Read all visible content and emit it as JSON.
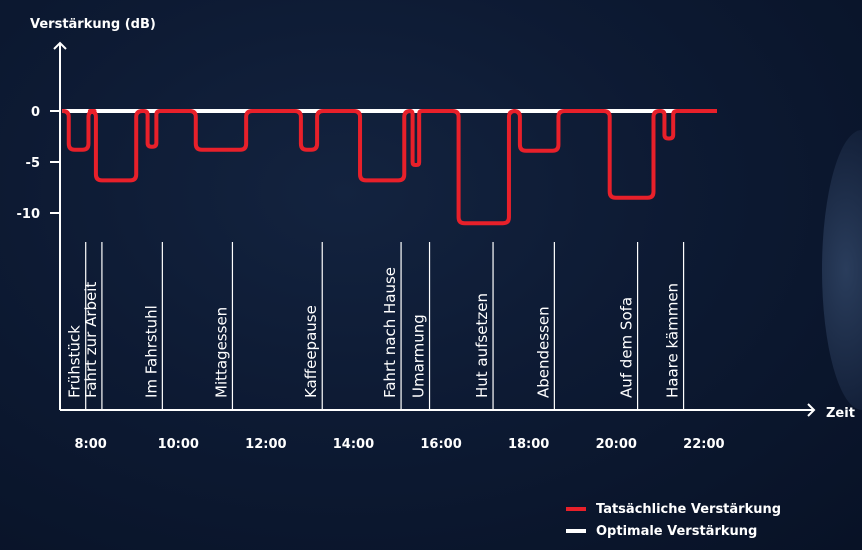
{
  "colors": {
    "background": "#0b1830",
    "axis": "#ffffff",
    "actual": "#e8202a",
    "optimal": "#ffffff"
  },
  "chart_data": {
    "type": "line",
    "ylabel": "Verstärkung (dB)",
    "xlabel": "Zeit",
    "ylim": [
      -20,
      8
    ],
    "xlim": [
      7.3,
      22.6
    ],
    "y_ticks": [
      {
        "value": 0,
        "label": "0"
      },
      {
        "value": -5,
        "label": "-5"
      },
      {
        "value": -10,
        "label": "-10"
      }
    ],
    "x_ticks": [
      {
        "value": 8,
        "label": "8:00"
      },
      {
        "value": 10,
        "label": "10:00"
      },
      {
        "value": 12,
        "label": "12:00"
      },
      {
        "value": 14,
        "label": "14:00"
      },
      {
        "value": 16,
        "label": "16:00"
      },
      {
        "value": 18,
        "label": "18:00"
      },
      {
        "value": 20,
        "label": "20:00"
      },
      {
        "value": 22,
        "label": "22:00"
      }
    ],
    "activities": [
      {
        "label": "Frühstück",
        "x": 7.75
      },
      {
        "label": "Fahrt zur Arbeit",
        "x": 8.12
      },
      {
        "label": "Im Fahrstuhl",
        "x": 9.5
      },
      {
        "label": "Mittagessen",
        "x": 11.1
      },
      {
        "label": "Kaffeepause",
        "x": 13.15
      },
      {
        "label": "Fahrt nach Hause",
        "x": 14.95
      },
      {
        "label": "Umarmung",
        "x": 15.6
      },
      {
        "label": "Hut aufsetzen",
        "x": 17.05
      },
      {
        "label": "Abendessen",
        "x": 18.45
      },
      {
        "label": "Auf dem Sofa",
        "x": 20.35
      },
      {
        "label": "Haare kämmen",
        "x": 21.4
      }
    ],
    "series": [
      {
        "name": "Tatsächliche Verstärkung",
        "color": "#e8202a",
        "dips": [
          {
            "start": 7.5,
            "end": 7.95,
            "depth": -3.8
          },
          {
            "start": 8.12,
            "end": 9.04,
            "depth": -6.8
          },
          {
            "start": 9.3,
            "end": 9.5,
            "depth": -3.5
          },
          {
            "start": 10.4,
            "end": 11.55,
            "depth": -3.8
          },
          {
            "start": 12.8,
            "end": 13.17,
            "depth": -3.8
          },
          {
            "start": 14.15,
            "end": 15.16,
            "depth": -6.8
          },
          {
            "start": 15.35,
            "end": 15.5,
            "depth": -5.3
          },
          {
            "start": 16.4,
            "end": 17.55,
            "depth": -11.0
          },
          {
            "start": 17.8,
            "end": 18.68,
            "depth": -3.9
          },
          {
            "start": 19.85,
            "end": 20.85,
            "depth": -8.5
          },
          {
            "start": 21.1,
            "end": 21.3,
            "depth": -2.7
          }
        ]
      },
      {
        "name": "Optimale Verstärkung",
        "color": "#ffffff",
        "values": [
          {
            "x": 7.35,
            "y": 0
          },
          {
            "x": 22.3,
            "y": 0
          }
        ]
      }
    ],
    "legend": "bottom-right"
  },
  "legend": {
    "actual_label": "Tatsächliche Verstärkung",
    "optimal_label": "Optimale Verstärkung"
  }
}
